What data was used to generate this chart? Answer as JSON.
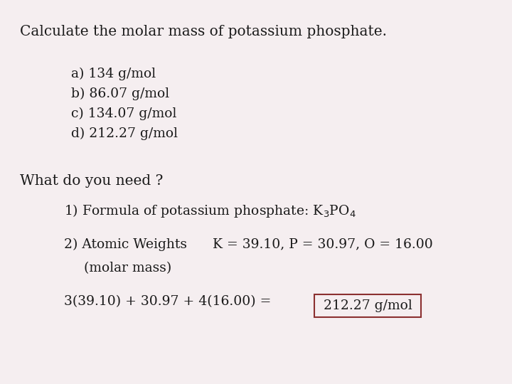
{
  "bg_color": "#f5eef0",
  "text_color": "#1a1a1a",
  "title": "Calculate the molar mass of potassium phosphate.",
  "options": [
    "a) 134 g/mol",
    "b) 86.07 g/mol",
    "c) 134.07 g/mol",
    "d) 212.27 g/mol"
  ],
  "what_do_you_need": "What do you need ?",
  "step1": "1) Formula of potassium phosphate: K$_3$PO$_4$",
  "step2a": "2) Atomic Weights      K = 39.10, P = 30.97, O = 16.00",
  "step2b": "(molar mass)",
  "equation": "3(39.10) + 30.97 + 4(16.00) =",
  "answer": "212.27 g/mol",
  "box_color": "#8b3030",
  "font_size_title": 14.5,
  "font_size_body": 13.5
}
